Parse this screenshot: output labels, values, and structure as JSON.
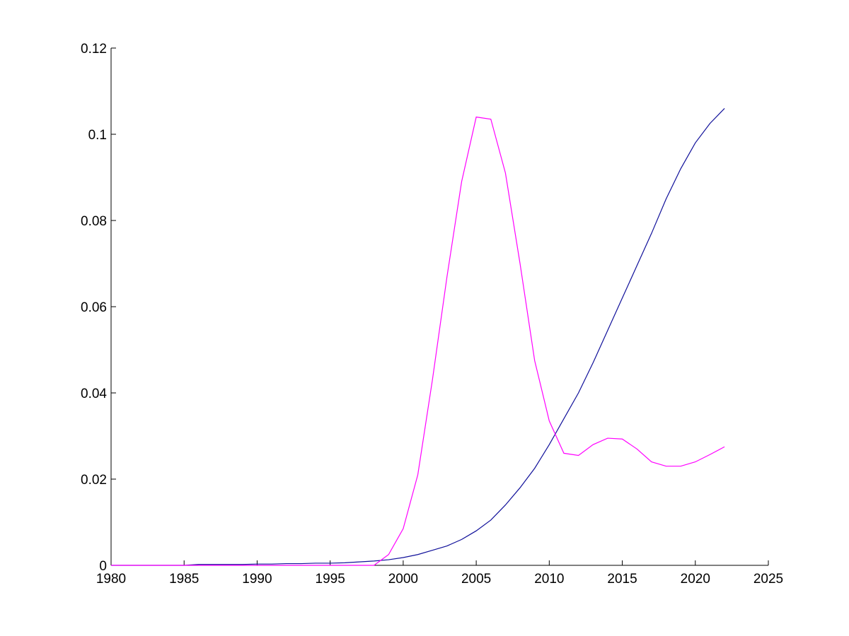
{
  "chart_data": {
    "type": "line",
    "x": [
      1980,
      1981,
      1982,
      1983,
      1984,
      1985,
      1986,
      1987,
      1988,
      1989,
      1990,
      1991,
      1992,
      1993,
      1994,
      1995,
      1996,
      1997,
      1998,
      1999,
      2000,
      2001,
      2002,
      2003,
      2004,
      2005,
      2006,
      2007,
      2008,
      2009,
      2010,
      2011,
      2012,
      2013,
      2014,
      2015,
      2016,
      2017,
      2018,
      2019,
      2020,
      2021,
      2022
    ],
    "series": [
      {
        "color": "#10109a",
        "values": [
          0,
          0,
          0,
          0,
          0,
          0,
          0.0002,
          0.0002,
          0.0002,
          0.0002,
          0.0003,
          0.0003,
          0.0004,
          0.0004,
          0.0005,
          0.0005,
          0.0006,
          0.0008,
          0.001,
          0.0013,
          0.0018,
          0.0025,
          0.0035,
          0.0045,
          0.006,
          0.008,
          0.0105,
          0.014,
          0.018,
          0.0225,
          0.028,
          0.034,
          0.04,
          0.047,
          0.0545,
          0.062,
          0.0695,
          0.077,
          0.085,
          0.092,
          0.098,
          0.1025,
          0.106
        ]
      },
      {
        "color": "#ff00ff",
        "values": [
          0,
          0,
          0,
          0,
          0,
          0,
          0,
          0,
          0,
          0,
          0,
          0,
          0,
          0,
          0,
          0,
          0,
          0,
          0,
          0.0025,
          0.0085,
          0.021,
          0.043,
          0.067,
          0.089,
          0.104,
          0.1035,
          0.091,
          0.07,
          0.0475,
          0.0335,
          0.026,
          0.0255,
          0.028,
          0.0295,
          0.0293,
          0.027,
          0.024,
          0.023,
          0.023,
          0.024,
          0.0257,
          0.0275
        ]
      }
    ],
    "xlim": [
      1980,
      2025
    ],
    "xticks": [
      1980,
      1985,
      1990,
      1995,
      2000,
      2005,
      2010,
      2015,
      2020,
      2025
    ],
    "ylim": [
      0,
      0.12
    ],
    "yticks": [
      0,
      0.02,
      0.04,
      0.06,
      0.08,
      0.1,
      0.12
    ],
    "grid": false
  }
}
